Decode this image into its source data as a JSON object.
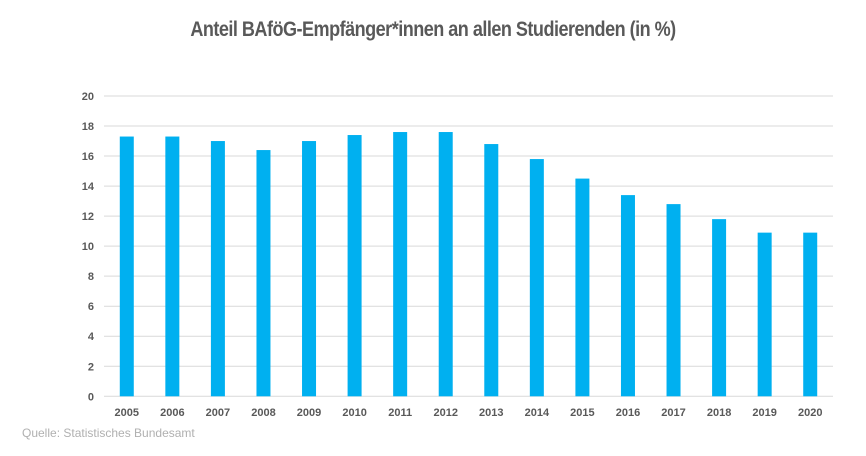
{
  "chart_data": {
    "type": "bar",
    "title": "Anteil BAföG-Empfänger*innen an allen Studierenden (in %)",
    "xlabel": "",
    "ylabel": "",
    "categories": [
      "2005",
      "2006",
      "2007",
      "2008",
      "2009",
      "2010",
      "2011",
      "2012",
      "2013",
      "2014",
      "2015",
      "2016",
      "2017",
      "2018",
      "2019",
      "2020"
    ],
    "values": [
      17.3,
      17.3,
      17.0,
      16.4,
      17.0,
      17.4,
      17.6,
      17.6,
      16.8,
      15.8,
      14.5,
      13.4,
      12.8,
      11.8,
      10.9,
      10.9
    ],
    "ylim": [
      0,
      20
    ],
    "yticks": [
      0,
      2,
      4,
      6,
      8,
      10,
      12,
      14,
      16,
      18,
      20
    ],
    "grid": true,
    "bar_color": "#00B0F0",
    "source": "Quelle: Statistisches Bundesamt"
  }
}
